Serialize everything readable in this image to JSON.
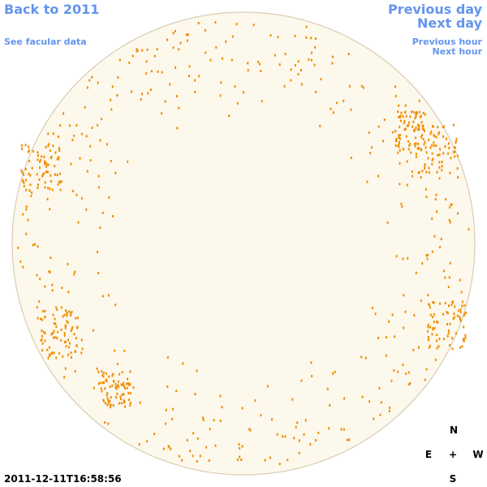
{
  "nav": {
    "back": "Back to 2011",
    "facular": "See facular data",
    "previous_day": "Previous day",
    "next_day": "Next day",
    "previous_hour": "Previous hour",
    "next_hour": "Next hour"
  },
  "timestamp": "2011-12-11T16:58:56",
  "compass": {
    "north": "N",
    "east": "E",
    "center": "+",
    "west": "W",
    "south": "S"
  }
}
